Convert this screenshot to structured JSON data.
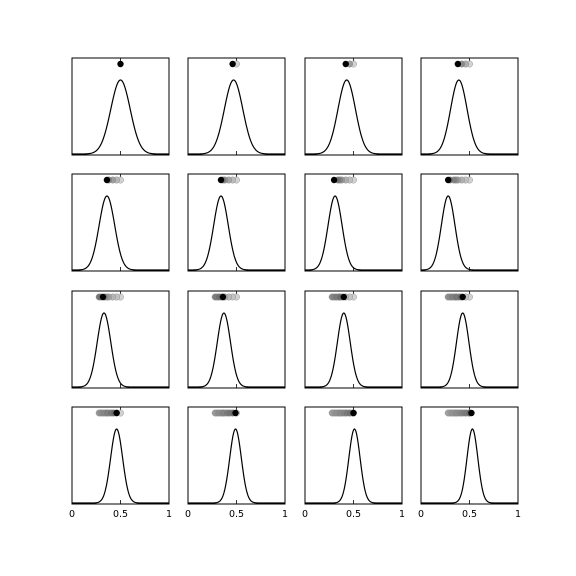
{
  "chart_data": {
    "type": "line",
    "layout": {
      "rows": 4,
      "cols": 4
    },
    "xlim": [
      0,
      1
    ],
    "x_ticks": [
      0,
      0.5,
      1
    ],
    "x_tick_labels": [
      "0",
      "0.5",
      "1"
    ],
    "grid": false,
    "legend": "none",
    "colors": {
      "curve": "#000000",
      "current_point": "#000000",
      "trail_point": "#bbbbbb"
    },
    "panels": [
      {
        "mu": 0.5,
        "sigma": 0.1,
        "points": [
          0.5
        ]
      },
      {
        "mu": 0.47,
        "sigma": 0.095,
        "points": [
          0.5,
          0.46
        ]
      },
      {
        "mu": 0.43,
        "sigma": 0.09,
        "points": [
          0.5,
          0.46,
          0.42
        ]
      },
      {
        "mu": 0.39,
        "sigma": 0.085,
        "points": [
          0.5,
          0.46,
          0.42,
          0.38
        ]
      },
      {
        "mu": 0.36,
        "sigma": 0.08,
        "points": [
          0.5,
          0.46,
          0.42,
          0.38,
          0.36
        ]
      },
      {
        "mu": 0.34,
        "sigma": 0.075,
        "points": [
          0.5,
          0.46,
          0.42,
          0.38,
          0.36,
          0.34
        ]
      },
      {
        "mu": 0.31,
        "sigma": 0.072,
        "points": [
          0.5,
          0.46,
          0.42,
          0.38,
          0.36,
          0.34,
          0.3
        ]
      },
      {
        "mu": 0.28,
        "sigma": 0.07,
        "points": [
          0.5,
          0.46,
          0.42,
          0.38,
          0.36,
          0.34,
          0.3,
          0.28
        ]
      },
      {
        "mu": 0.33,
        "sigma": 0.07,
        "points": [
          0.5,
          0.46,
          0.42,
          0.38,
          0.36,
          0.34,
          0.3,
          0.28,
          0.32
        ]
      },
      {
        "mu": 0.37,
        "sigma": 0.068,
        "points": [
          0.5,
          0.46,
          0.42,
          0.38,
          0.36,
          0.34,
          0.3,
          0.28,
          0.32,
          0.36
        ]
      },
      {
        "mu": 0.4,
        "sigma": 0.066,
        "points": [
          0.5,
          0.46,
          0.42,
          0.38,
          0.36,
          0.34,
          0.3,
          0.28,
          0.32,
          0.36,
          0.4
        ]
      },
      {
        "mu": 0.43,
        "sigma": 0.064,
        "points": [
          0.5,
          0.46,
          0.42,
          0.38,
          0.36,
          0.34,
          0.3,
          0.28,
          0.32,
          0.36,
          0.4,
          0.43
        ]
      },
      {
        "mu": 0.46,
        "sigma": 0.062,
        "points": [
          0.5,
          0.46,
          0.42,
          0.38,
          0.36,
          0.34,
          0.3,
          0.28,
          0.32,
          0.36,
          0.4,
          0.43,
          0.46
        ]
      },
      {
        "mu": 0.49,
        "sigma": 0.06,
        "points": [
          0.5,
          0.46,
          0.42,
          0.38,
          0.36,
          0.34,
          0.3,
          0.28,
          0.32,
          0.36,
          0.4,
          0.43,
          0.46,
          0.49
        ]
      },
      {
        "mu": 0.51,
        "sigma": 0.058,
        "points": [
          0.5,
          0.46,
          0.42,
          0.38,
          0.36,
          0.34,
          0.3,
          0.28,
          0.32,
          0.36,
          0.4,
          0.43,
          0.46,
          0.49,
          0.5
        ]
      },
      {
        "mu": 0.53,
        "sigma": 0.056,
        "points": [
          0.5,
          0.46,
          0.42,
          0.38,
          0.36,
          0.34,
          0.3,
          0.28,
          0.32,
          0.36,
          0.4,
          0.43,
          0.46,
          0.49,
          0.5,
          0.52
        ]
      }
    ]
  }
}
